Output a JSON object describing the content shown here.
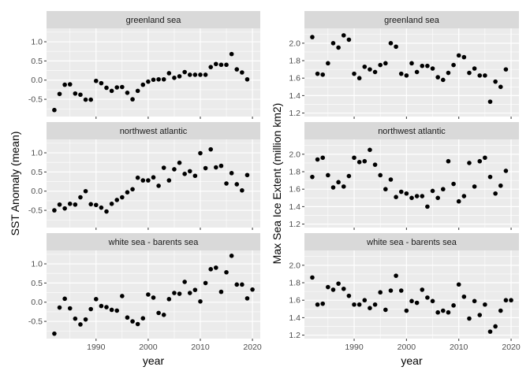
{
  "chart_data": [
    {
      "type": "scatter",
      "panel": "greenland sea",
      "xlabel": "year",
      "ylabel": "SST Anomaly (mean)",
      "xlim": [
        1980.5,
        2021.5
      ],
      "ylim": [
        -0.95,
        1.35
      ],
      "yticks": [
        -0.5,
        0.0,
        0.5,
        1.0
      ],
      "ytick_labels": [
        "-0.5",
        "0.0",
        "0.5",
        "1.0"
      ],
      "xticks": [
        1990,
        2000,
        2010,
        2020
      ],
      "series": [
        {
          "x": [
            1982,
            1983,
            1984,
            1985,
            1986,
            1987,
            1988,
            1989,
            1990,
            1991,
            1992,
            1993,
            1994,
            1995,
            1996,
            1997,
            1998,
            1999,
            2000,
            2001,
            2002,
            2003,
            2004,
            2005,
            2006,
            2007,
            2008,
            2009,
            2010,
            2011,
            2012,
            2013,
            2014,
            2015,
            2016,
            2017,
            2018,
            2019
          ],
          "y": [
            -0.78,
            -0.36,
            -0.12,
            -0.11,
            -0.35,
            -0.38,
            -0.51,
            -0.51,
            -0.02,
            -0.08,
            -0.2,
            -0.28,
            -0.19,
            -0.18,
            -0.33,
            -0.5,
            -0.28,
            -0.12,
            -0.04,
            0.01,
            0.02,
            0.02,
            0.18,
            0.06,
            0.1,
            0.21,
            0.14,
            0.14,
            0.14,
            0.14,
            0.34,
            0.42,
            0.4,
            0.4,
            0.68,
            0.28,
            0.2,
            0.02
          ]
        }
      ]
    },
    {
      "type": "scatter",
      "panel": "greenland sea",
      "xlabel": "year",
      "ylabel": "Max Sea Ice Extent (million km2)",
      "xlim": [
        1980.5,
        2021.5
      ],
      "ylim": [
        1.16,
        2.17
      ],
      "yticks": [
        1.2,
        1.4,
        1.6,
        1.8,
        2.0
      ],
      "ytick_labels": [
        "1.2",
        "1.4",
        "1.6",
        "1.8",
        "2.0"
      ],
      "xticks": [
        1990,
        2000,
        2010,
        2020
      ],
      "series": [
        {
          "x": [
            1982,
            1983,
            1984,
            1985,
            1986,
            1987,
            1988,
            1989,
            1990,
            1991,
            1992,
            1993,
            1994,
            1995,
            1996,
            1997,
            1998,
            1999,
            2000,
            2001,
            2002,
            2003,
            2004,
            2005,
            2006,
            2007,
            2008,
            2009,
            2010,
            2011,
            2012,
            2013,
            2014,
            2015,
            2016,
            2017,
            2018,
            2019
          ],
          "y": [
            2.07,
            1.65,
            1.64,
            1.77,
            2.0,
            1.95,
            2.09,
            2.04,
            1.65,
            1.6,
            1.73,
            1.7,
            1.67,
            1.75,
            1.77,
            2.0,
            1.96,
            1.65,
            1.63,
            1.77,
            1.67,
            1.74,
            1.74,
            1.71,
            1.61,
            1.58,
            1.66,
            1.75,
            1.86,
            1.84,
            1.66,
            1.71,
            1.63,
            1.63,
            1.33,
            1.56,
            1.5,
            1.7
          ]
        }
      ]
    },
    {
      "type": "scatter",
      "panel": "northwest atlantic",
      "xlabel": "year",
      "ylabel": "SST Anomaly (mean)",
      "xlim": [
        1980.5,
        2021.5
      ],
      "ylim": [
        -0.95,
        1.35
      ],
      "yticks": [
        -0.5,
        0.0,
        0.5,
        1.0
      ],
      "ytick_labels": [
        "-0.5",
        "0.0",
        "0.5",
        "1.0"
      ],
      "xticks": [
        1990,
        2000,
        2010,
        2020
      ],
      "series": [
        {
          "x": [
            1982,
            1983,
            1984,
            1985,
            1986,
            1987,
            1988,
            1989,
            1990,
            1991,
            1992,
            1993,
            1994,
            1995,
            1996,
            1997,
            1998,
            1999,
            2000,
            2001,
            2002,
            2003,
            2004,
            2005,
            2006,
            2007,
            2008,
            2009,
            2010,
            2011,
            2012,
            2013,
            2014,
            2015,
            2016,
            2017,
            2018,
            2019
          ],
          "y": [
            -0.5,
            -0.35,
            -0.45,
            -0.33,
            -0.35,
            -0.16,
            0.0,
            -0.34,
            -0.36,
            -0.43,
            -0.53,
            -0.33,
            -0.23,
            -0.16,
            -0.03,
            0.05,
            0.35,
            0.28,
            0.28,
            0.36,
            0.14,
            0.61,
            0.28,
            0.57,
            0.74,
            0.45,
            0.52,
            0.4,
            0.99,
            0.6,
            1.09,
            0.62,
            0.66,
            0.2,
            0.47,
            0.18,
            0.02,
            0.42
          ]
        }
      ]
    },
    {
      "type": "scatter",
      "panel": "northwest atlantic",
      "xlabel": "year",
      "ylabel": "Max Sea Ice Extent (million km2)",
      "xlim": [
        1980.5,
        2021.5
      ],
      "ylim": [
        1.16,
        2.17
      ],
      "yticks": [
        1.2,
        1.4,
        1.6,
        1.8,
        2.0
      ],
      "ytick_labels": [
        "1.2",
        "1.4",
        "1.6",
        "1.8",
        "2.0"
      ],
      "xticks": [
        1990,
        2000,
        2010,
        2020
      ],
      "series": [
        {
          "x": [
            1982,
            1983,
            1984,
            1985,
            1986,
            1987,
            1988,
            1989,
            1990,
            1991,
            1992,
            1993,
            1994,
            1995,
            1996,
            1997,
            1998,
            1999,
            2000,
            2001,
            2002,
            2003,
            2004,
            2005,
            2006,
            2007,
            2008,
            2009,
            2010,
            2011,
            2012,
            2013,
            2014,
            2015,
            2016,
            2017,
            2018,
            2019
          ],
          "y": [
            1.74,
            1.94,
            1.96,
            1.76,
            1.62,
            1.68,
            1.63,
            1.75,
            1.96,
            1.91,
            1.92,
            2.05,
            1.88,
            1.76,
            1.6,
            1.71,
            1.51,
            1.57,
            1.55,
            1.5,
            1.52,
            1.52,
            1.4,
            1.58,
            1.5,
            1.6,
            1.92,
            1.66,
            1.46,
            1.52,
            1.9,
            1.63,
            1.92,
            1.96,
            1.74,
            1.55,
            1.64,
            1.81
          ]
        }
      ]
    },
    {
      "type": "scatter",
      "panel": "white sea - barents sea",
      "xlabel": "year",
      "ylabel": "SST Anomaly (mean)",
      "xlim": [
        1980.5,
        2021.5
      ],
      "ylim": [
        -0.95,
        1.35
      ],
      "yticks": [
        -0.5,
        0.0,
        0.5,
        1.0
      ],
      "ytick_labels": [
        "-0.5",
        "0.0",
        "0.5",
        "1.0"
      ],
      "xticks": [
        1990,
        2000,
        2010,
        2020
      ],
      "series": [
        {
          "x": [
            1982,
            1983,
            1984,
            1985,
            1986,
            1987,
            1988,
            1989,
            1990,
            1991,
            1992,
            1993,
            1994,
            1995,
            1996,
            1997,
            1998,
            1999,
            2000,
            2001,
            2002,
            2003,
            2004,
            2005,
            2006,
            2007,
            2008,
            2009,
            2010,
            2011,
            2012,
            2013,
            2014,
            2015,
            2016,
            2017,
            2018,
            2019,
            2020
          ],
          "y": [
            -0.82,
            -0.14,
            0.09,
            -0.16,
            -0.43,
            -0.58,
            -0.45,
            -0.18,
            0.08,
            -0.1,
            -0.13,
            -0.2,
            -0.22,
            0.16,
            -0.4,
            -0.5,
            -0.57,
            -0.42,
            0.2,
            0.12,
            -0.28,
            -0.33,
            0.08,
            0.24,
            0.22,
            0.53,
            0.24,
            0.32,
            0.02,
            0.5,
            0.86,
            0.9,
            0.27,
            0.78,
            1.21,
            0.46,
            0.46,
            0.1,
            0.33
          ]
        }
      ]
    },
    {
      "type": "scatter",
      "panel": "white sea - barents sea",
      "xlabel": "year",
      "ylabel": "Max Sea Ice Extent (million km2)",
      "xlim": [
        1980.5,
        2021.5
      ],
      "ylim": [
        1.16,
        2.17
      ],
      "yticks": [
        1.2,
        1.4,
        1.6,
        1.8,
        2.0
      ],
      "ytick_labels": [
        "1.2",
        "1.4",
        "1.6",
        "1.8",
        "2.0"
      ],
      "xticks": [
        1990,
        2000,
        2010,
        2020
      ],
      "series": [
        {
          "x": [
            1982,
            1983,
            1984,
            1985,
            1986,
            1987,
            1988,
            1989,
            1990,
            1991,
            1992,
            1993,
            1994,
            1995,
            1996,
            1997,
            1998,
            1999,
            2000,
            2001,
            2002,
            2003,
            2004,
            2005,
            2006,
            2007,
            2008,
            2009,
            2010,
            2011,
            2012,
            2013,
            2014,
            2015,
            2016,
            2017,
            2018,
            2019,
            2020
          ],
          "y": [
            1.86,
            1.55,
            1.56,
            1.75,
            1.72,
            1.79,
            1.73,
            1.65,
            1.55,
            1.55,
            1.6,
            1.51,
            1.55,
            1.69,
            1.49,
            1.71,
            1.88,
            1.71,
            1.48,
            1.59,
            1.57,
            1.72,
            1.63,
            1.59,
            1.46,
            1.48,
            1.46,
            1.54,
            1.78,
            1.64,
            1.39,
            1.59,
            1.43,
            1.55,
            1.24,
            1.3,
            1.48,
            1.6,
            1.6
          ]
        }
      ]
    }
  ],
  "style": {
    "panel_background": "#ebebeb",
    "strip_background": "#d9d9d9",
    "gridline_color": "#ffffff",
    "point_color": "#000000",
    "grid": true
  }
}
